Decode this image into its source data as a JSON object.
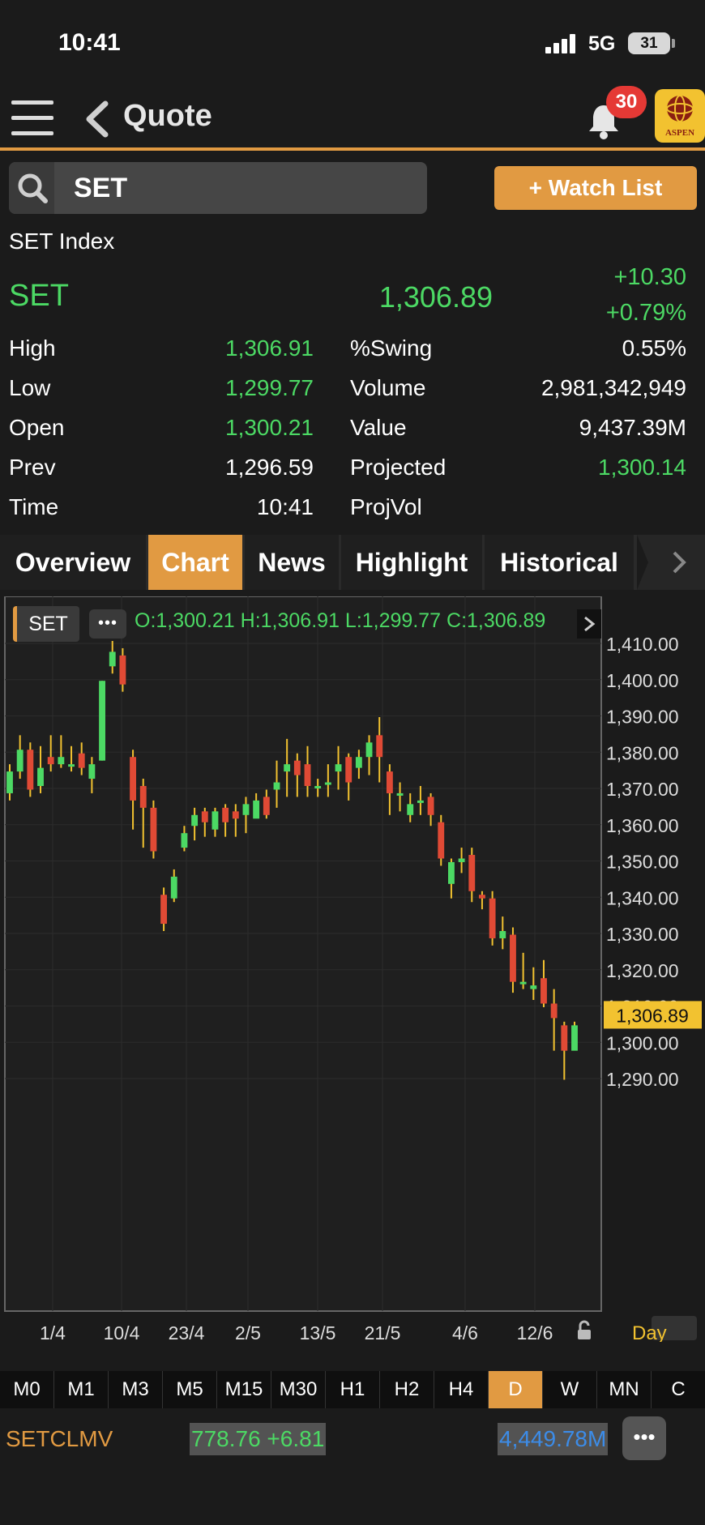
{
  "status_bar": {
    "time": "10:41",
    "network": "5G",
    "battery": "31"
  },
  "nav": {
    "title": "Quote",
    "notification_count": "30",
    "logo_text": "ASPEN"
  },
  "search": {
    "value": "SET"
  },
  "watch_list_button": "+ Watch List",
  "quote": {
    "index_name": "SET Index",
    "symbol": "SET",
    "last": "1,306.89",
    "change": "+10.30",
    "change_pct": "+0.79%"
  },
  "stats": {
    "high_label": "High",
    "high": "1,306.91",
    "low_label": "Low",
    "low": "1,299.77",
    "open_label": "Open",
    "open": "1,300.21",
    "prev_label": "Prev",
    "prev": "1,296.59",
    "time_label": "Time",
    "time": "10:41",
    "swing_label": "%Swing",
    "swing": "0.55%",
    "volume_label": "Volume",
    "volume": "2,981,342,949",
    "value_label": "Value",
    "value": "9,437.39M",
    "projected_label": "Projected",
    "projected": "1,300.14",
    "projvol_label": "ProjVol"
  },
  "tabs": [
    "Overview",
    "Chart",
    "News",
    "Highlight",
    "Historical"
  ],
  "active_tab": "Chart",
  "chart_header": {
    "symbol": "SET",
    "more": "•••",
    "ohlc_text": "O:1,300.21  H:1,306.91  L:1,299.77  C:1,306.89"
  },
  "chart_data": {
    "type": "candlestick",
    "ylim": [
      1286,
      1414
    ],
    "y_ticks": [
      "1,410.00",
      "1,400.00",
      "1,390.00",
      "1,380.00",
      "1,370.00",
      "1,360.00",
      "1,350.00",
      "1,340.00",
      "1,330.00",
      "1,320.00",
      "1,310.00",
      "1,300.00",
      "1,290.00"
    ],
    "x_ticks": [
      "1/4",
      "10/4",
      "23/4",
      "2/5",
      "13/5",
      "21/5",
      "4/6",
      "12/6"
    ],
    "current_price_label": "1,306.89",
    "period_label": "Day",
    "up_color": "#4cd964",
    "down_color": "#e04a35",
    "candles": [
      [
        1368,
        1374,
        1366,
        1376
      ],
      [
        1374,
        1380,
        1372,
        1384
      ],
      [
        1380,
        1369,
        1367,
        1382
      ],
      [
        1370,
        1375,
        1368,
        1381
      ],
      [
        1378,
        1376,
        1374,
        1384
      ],
      [
        1376,
        1378,
        1375,
        1384
      ],
      [
        1376,
        1376,
        1374,
        1381
      ],
      [
        1379,
        1375,
        1373,
        1382
      ],
      [
        1372,
        1376,
        1368,
        1378
      ],
      [
        1377,
        1399,
        1377,
        1399
      ],
      [
        1403,
        1407,
        1401,
        1410
      ],
      [
        1406,
        1398,
        1396,
        1408
      ],
      [
        1378,
        1366,
        1358,
        1380
      ],
      [
        1370,
        1364,
        1353,
        1372
      ],
      [
        1364,
        1352,
        1350,
        1366
      ],
      [
        1340,
        1332,
        1330,
        1342
      ],
      [
        1339,
        1345,
        1338,
        1347
      ],
      [
        1353,
        1357,
        1352,
        1359
      ],
      [
        1359,
        1362,
        1355,
        1364
      ],
      [
        1363,
        1360,
        1356,
        1364
      ],
      [
        1358,
        1363,
        1356,
        1364
      ],
      [
        1364,
        1360,
        1356,
        1365
      ],
      [
        1363,
        1361,
        1356,
        1365
      ],
      [
        1362,
        1365,
        1357,
        1367
      ],
      [
        1361,
        1366,
        1362,
        1368
      ],
      [
        1367,
        1362,
        1361,
        1369
      ],
      [
        1369,
        1371,
        1364,
        1377
      ],
      [
        1374,
        1376,
        1367,
        1383
      ],
      [
        1377,
        1373,
        1367,
        1379
      ],
      [
        1376,
        1370,
        1367,
        1381
      ],
      [
        1370,
        1370,
        1367,
        1372
      ],
      [
        1371,
        1371,
        1367,
        1376
      ],
      [
        1374,
        1376,
        1369,
        1381
      ],
      [
        1378,
        1371,
        1366,
        1379
      ],
      [
        1375,
        1378,
        1372,
        1380
      ],
      [
        1378,
        1382,
        1373,
        1384
      ],
      [
        1384,
        1378,
        1371,
        1389
      ],
      [
        1374,
        1368,
        1362,
        1376
      ],
      [
        1368,
        1368,
        1363,
        1371
      ],
      [
        1362,
        1365,
        1360,
        1368
      ],
      [
        1366,
        1366,
        1362,
        1370
      ],
      [
        1367,
        1362,
        1359,
        1368
      ],
      [
        1360,
        1350,
        1348,
        1362
      ],
      [
        1343,
        1349,
        1339,
        1350
      ],
      [
        1349,
        1350,
        1346,
        1353
      ],
      [
        1351,
        1341,
        1338,
        1353
      ],
      [
        1340,
        1339,
        1336,
        1341
      ],
      [
        1339,
        1328,
        1326,
        1341
      ],
      [
        1328,
        1330,
        1325,
        1334
      ],
      [
        1329,
        1316,
        1313,
        1331
      ],
      [
        1316,
        1316,
        1314,
        1324
      ],
      [
        1314,
        1315,
        1311,
        1320
      ],
      [
        1317,
        1310,
        1309,
        1322
      ],
      [
        1310,
        1306,
        1297,
        1314
      ],
      [
        1304,
        1297,
        1289,
        1305
      ],
      [
        1297,
        1304,
        1298,
        1305
      ]
    ]
  },
  "timeframes": [
    "M0",
    "M1",
    "M3",
    "M5",
    "M15",
    "M30",
    "H1",
    "H2",
    "H4",
    "D",
    "W",
    "MN",
    "C"
  ],
  "active_timeframe": "D",
  "bottom_row": {
    "name": "SETCLMV",
    "value_change": "778.76 +6.81",
    "amount": "4,449.78M",
    "more": "•••"
  }
}
